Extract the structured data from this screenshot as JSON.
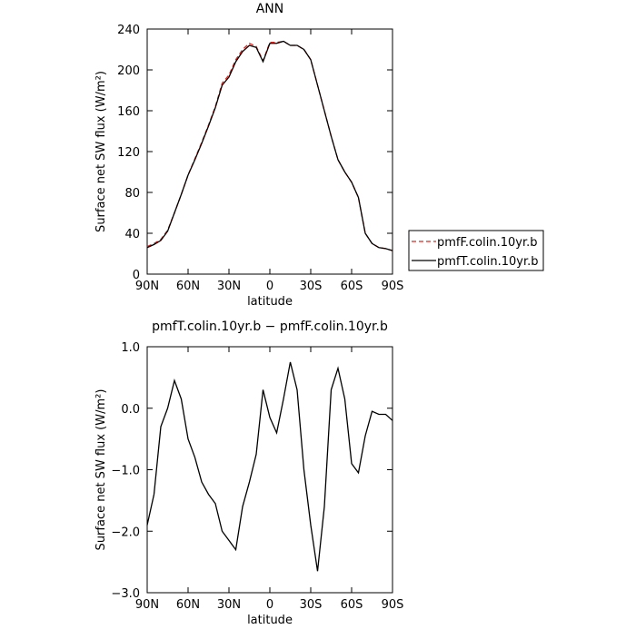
{
  "chart_data": [
    {
      "type": "line",
      "title": "ANN",
      "xlabel": "latitude",
      "ylabel": "Surface net SW flux (W/m²)",
      "x": [
        90,
        85,
        80,
        75,
        70,
        65,
        60,
        55,
        50,
        45,
        40,
        35,
        30,
        25,
        20,
        15,
        10,
        5,
        0,
        -5,
        -10,
        -15,
        -20,
        -25,
        -30,
        -35,
        -40,
        -45,
        -50,
        -55,
        -60,
        -65,
        -70,
        -75,
        -80,
        -85,
        -90
      ],
      "xlim": [
        90,
        -90
      ],
      "xticks": [
        {
          "value": 90,
          "label": "90N"
        },
        {
          "value": 60,
          "label": "60N"
        },
        {
          "value": 30,
          "label": "30N"
        },
        0,
        {
          "value": -30,
          "label": "30S"
        },
        {
          "value": -60,
          "label": "60S"
        },
        {
          "value": -90,
          "label": "90S"
        }
      ],
      "ylim": [
        0,
        240
      ],
      "yticks": [
        0,
        40,
        80,
        120,
        160,
        200,
        240
      ],
      "legend": "right",
      "series": [
        {
          "name": "pmfF.colin.10yr.b",
          "color": "#e0261f",
          "dash": "dashed",
          "values": [
            27,
            30,
            34,
            43,
            60,
            78,
            97,
            113,
            129,
            146,
            164,
            187,
            195,
            210,
            220,
            226,
            223,
            209,
            227,
            227,
            228,
            224,
            224,
            220,
            210,
            185,
            160,
            135,
            112,
            100,
            90,
            75,
            40,
            30,
            26,
            25,
            23
          ]
        },
        {
          "name": "pmfT.colin.10yr.b",
          "color": "#000000",
          "dash": "solid",
          "values": [
            26,
            29,
            33,
            42,
            60,
            78,
            97,
            112,
            128,
            145,
            163,
            185,
            193,
            208,
            218,
            224,
            222,
            208,
            226,
            226,
            228,
            224,
            224,
            220,
            210,
            185,
            160,
            135,
            112,
            100,
            90,
            75,
            40,
            30,
            26,
            25,
            23
          ]
        }
      ]
    },
    {
      "type": "line",
      "title": "pmfT.colin.10yr.b − pmfF.colin.10yr.b",
      "xlabel": "latitude",
      "ylabel": "Surface net SW flux (W/m²)",
      "x": [
        90,
        85,
        80,
        75,
        70,
        65,
        60,
        55,
        50,
        45,
        40,
        35,
        30,
        25,
        20,
        15,
        10,
        5,
        0,
        -5,
        -10,
        -15,
        -20,
        -25,
        -30,
        -35,
        -40,
        -45,
        -50,
        -55,
        -60,
        -65,
        -70,
        -75,
        -80,
        -85,
        -90
      ],
      "xlim": [
        90,
        -90
      ],
      "xticks": [
        {
          "value": 90,
          "label": "90N"
        },
        {
          "value": 60,
          "label": "60N"
        },
        {
          "value": 30,
          "label": "30N"
        },
        0,
        {
          "value": -30,
          "label": "30S"
        },
        {
          "value": -60,
          "label": "60S"
        },
        {
          "value": -90,
          "label": "90S"
        }
      ],
      "ylim": [
        -3,
        1
      ],
      "yticks": [
        {
          "value": -3,
          "label": "−3.0"
        },
        {
          "value": -2,
          "label": "−2.0"
        },
        {
          "value": -1,
          "label": "−1.0"
        },
        {
          "value": 0,
          "label": "0.0"
        },
        {
          "value": 1,
          "label": "1.0"
        }
      ],
      "series": [
        {
          "color": "#000000",
          "dash": "solid",
          "values": [
            -1.9,
            -1.4,
            -0.3,
            0.0,
            0.45,
            0.15,
            -0.5,
            -0.8,
            -1.2,
            -1.4,
            -1.55,
            -2.0,
            -2.15,
            -2.3,
            -1.6,
            -1.2,
            -0.75,
            0.3,
            -0.15,
            -0.4,
            0.15,
            0.75,
            0.3,
            -1.0,
            -1.9,
            -2.65,
            -1.6,
            0.3,
            0.65,
            0.15,
            -0.9,
            -1.05,
            -0.45,
            -0.05,
            -0.1,
            -0.1,
            -0.2
          ]
        }
      ]
    }
  ]
}
